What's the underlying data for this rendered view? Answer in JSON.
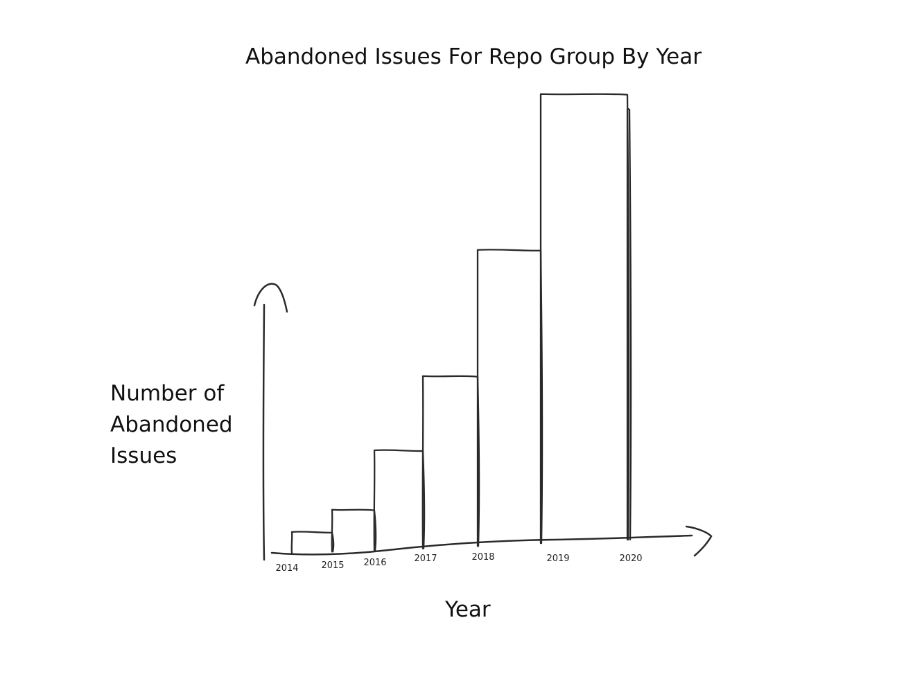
{
  "chart_data": {
    "type": "bar",
    "title": "Abandoned Issues For Repo Group By Year",
    "xlabel": "Year",
    "ylabel_lines": [
      "Number of",
      "Abandoned",
      "Issues"
    ],
    "categories": [
      "2014",
      "2015",
      "2016",
      "2017",
      "2018",
      "2019",
      "2020"
    ],
    "values": [
      3,
      6,
      14,
      24,
      41,
      62,
      60
    ],
    "ylim": [
      0,
      70
    ],
    "grid": false,
    "legend": "none",
    "style": "hand-drawn sketch",
    "stroke_color": "#2a2a2a"
  }
}
